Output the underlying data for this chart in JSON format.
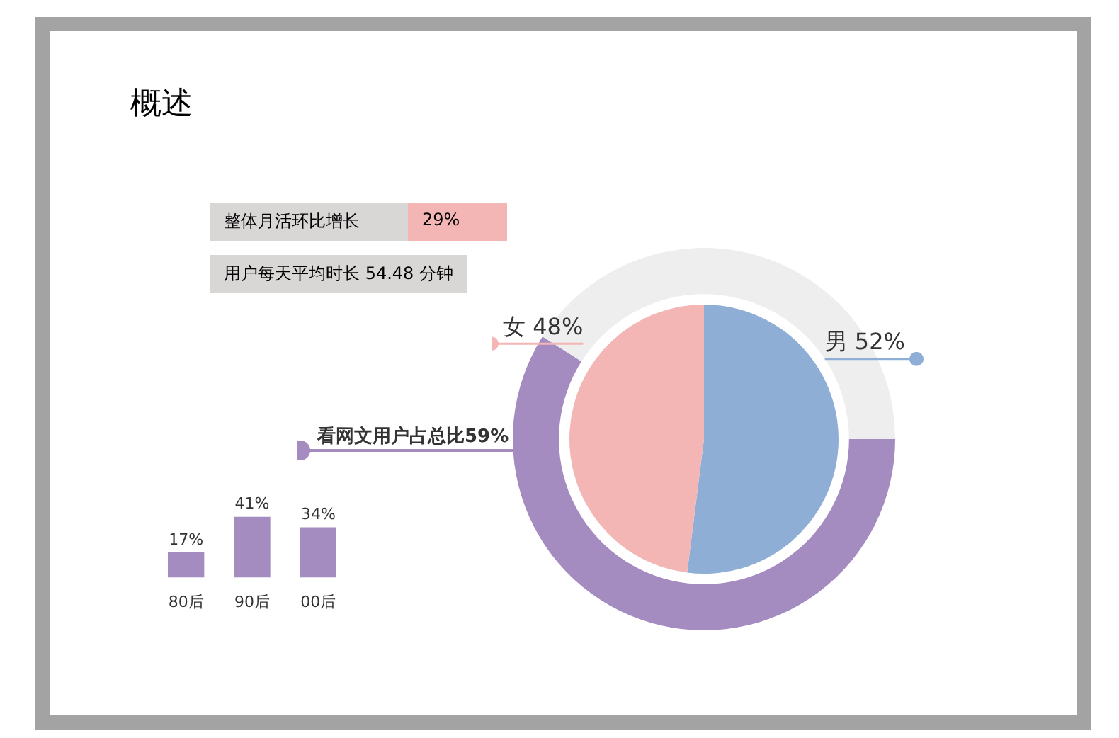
{
  "chart_data": [
    {
      "type": "other",
      "title": "概述",
      "annotations": [
        "整体月活环比增长",
        "29%",
        "用户每天平均时长 54.48 分钟"
      ]
    },
    {
      "type": "pie",
      "categories": [
        "男",
        "女"
      ],
      "values": [
        52,
        48
      ],
      "colors": [
        "#8eaed6",
        "#f4b5b5"
      ],
      "value_labels": [
        "52%",
        "48%"
      ],
      "legend": false
    },
    {
      "type": "donut",
      "categories": [
        "看网文用户占总比59%",
        null
      ],
      "values": [
        59,
        41
      ],
      "colors": [
        "#a58cc0",
        "#eeeeee"
      ],
      "legend": false
    },
    {
      "type": "bar",
      "categories": [
        "80后",
        "90后",
        "00后"
      ],
      "values": [
        17,
        41,
        34
      ],
      "color": "#a58cc0",
      "value_labels": [
        "17%",
        "41%",
        "34%"
      ],
      "tick_labels": "x",
      "grid": false,
      "legend": false
    }
  ]
}
